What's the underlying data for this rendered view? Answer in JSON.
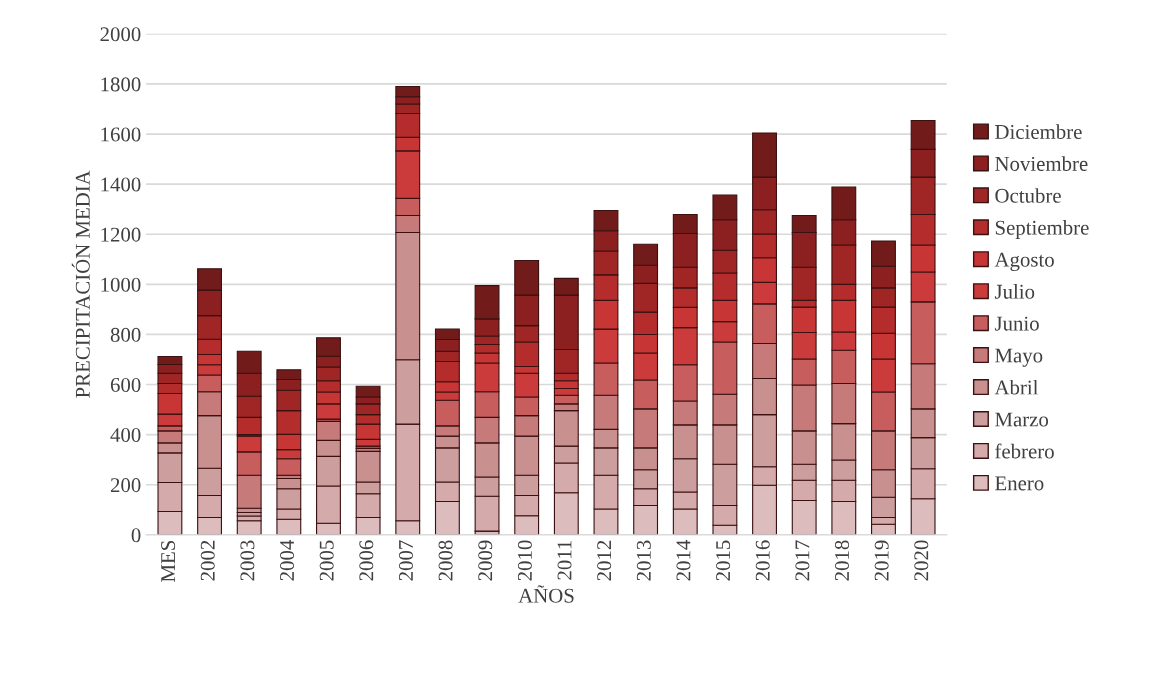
{
  "chart_data": {
    "type": "bar",
    "stacked": true,
    "xlabel": "AÑOS",
    "ylabel": "PRECIPITACIÓN MEDIA",
    "categories": [
      "MES",
      "2002",
      "2003",
      "2004",
      "2005",
      "2006",
      "2007",
      "2008",
      "2009",
      "2010",
      "2011",
      "2012",
      "2013",
      "2014",
      "2015",
      "2016",
      "2017",
      "2018",
      "2019",
      "2020"
    ],
    "ylim": [
      0,
      2000
    ],
    "yticks": [
      0,
      200,
      400,
      600,
      800,
      1000,
      1200,
      1400,
      1600,
      1800,
      2000
    ],
    "grid": "y",
    "legend": "right",
    "series": [
      {
        "name": "Enero",
        "color": "#dcbcbc",
        "values": [
          93,
          69,
          56,
          62,
          46,
          69,
          56,
          133,
          15,
          76,
          168,
          103,
          117,
          103,
          38,
          198,
          137,
          133,
          42,
          144
        ]
      },
      {
        "name": "febrero",
        "color": "#d4aaaa",
        "values": [
          116,
          88,
          19,
          41,
          149,
          95,
          386,
          78,
          139,
          81,
          119,
          135,
          67,
          68,
          79,
          74,
          81,
          85,
          27,
          120
        ]
      },
      {
        "name": "Marzo",
        "color": "#cc9e9e",
        "values": [
          118,
          109,
          14,
          81,
          118,
          47,
          257,
          136,
          77,
          81,
          67,
          109,
          76,
          133,
          165,
          208,
          64,
          81,
          81,
          124
        ]
      },
      {
        "name": "Abril",
        "color": "#c99090",
        "values": [
          40,
          210,
          17,
          41,
          64,
          122,
          508,
          47,
          136,
          156,
          142,
          74,
          87,
          135,
          157,
          144,
          133,
          145,
          110,
          115
        ]
      },
      {
        "name": "Mayo",
        "color": "#c67a7a",
        "values": [
          48,
          95,
          132,
          13,
          76,
          12,
          68,
          41,
          102,
          82,
          27,
          136,
          156,
          95,
          122,
          140,
          183,
          160,
          155,
          180
        ]
      },
      {
        "name": "Junio",
        "color": "#c85d5d",
        "values": [
          20,
          67,
          93,
          66,
          9,
          9,
          68,
          102,
          102,
          74,
          34,
          129,
          115,
          145,
          209,
          158,
          104,
          133,
          155,
          247
        ]
      },
      {
        "name": "Julio",
        "color": "#cc3b3b",
        "values": [
          47,
          41,
          63,
          36,
          61,
          27,
          190,
          33,
          115,
          95,
          27,
          135,
          108,
          148,
          81,
          86,
          106,
          73,
          132,
          119
        ]
      },
      {
        "name": "Agosto",
        "color": "#c83535",
        "values": [
          82,
          41,
          6,
          61,
          47,
          61,
          54,
          41,
          40,
          27,
          31,
          115,
          74,
          81,
          85,
          98,
          101,
          126,
          103,
          108
        ]
      },
      {
        "name": "Septiembre",
        "color": "#b52c2c",
        "values": [
          40,
          61,
          69,
          95,
          45,
          38,
          95,
          81,
          34,
          98,
          30,
          102,
          89,
          78,
          109,
          95,
          27,
          64,
          104,
          122
        ]
      },
      {
        "name": "Octubre",
        "color": "#a02525",
        "values": [
          41,
          94,
          84,
          81,
          55,
          43,
          38,
          41,
          34,
          65,
          95,
          95,
          115,
          82,
          91,
          97,
          132,
          157,
          77,
          149
        ]
      },
      {
        "name": "Noviembre",
        "color": "#8c2020",
        "values": [
          35,
          102,
          92,
          43,
          43,
          27,
          29,
          47,
          68,
          122,
          217,
          81,
          72,
          135,
          122,
          130,
          139,
          101,
          86,
          111
        ]
      },
      {
        "name": "Diciembre",
        "color": "#721b1b",
        "values": [
          32,
          85,
          88,
          39,
          74,
          43,
          41,
          41,
          133,
          138,
          67,
          81,
          84,
          76,
          98,
          176,
          68,
          130,
          101,
          115
        ]
      }
    ]
  }
}
